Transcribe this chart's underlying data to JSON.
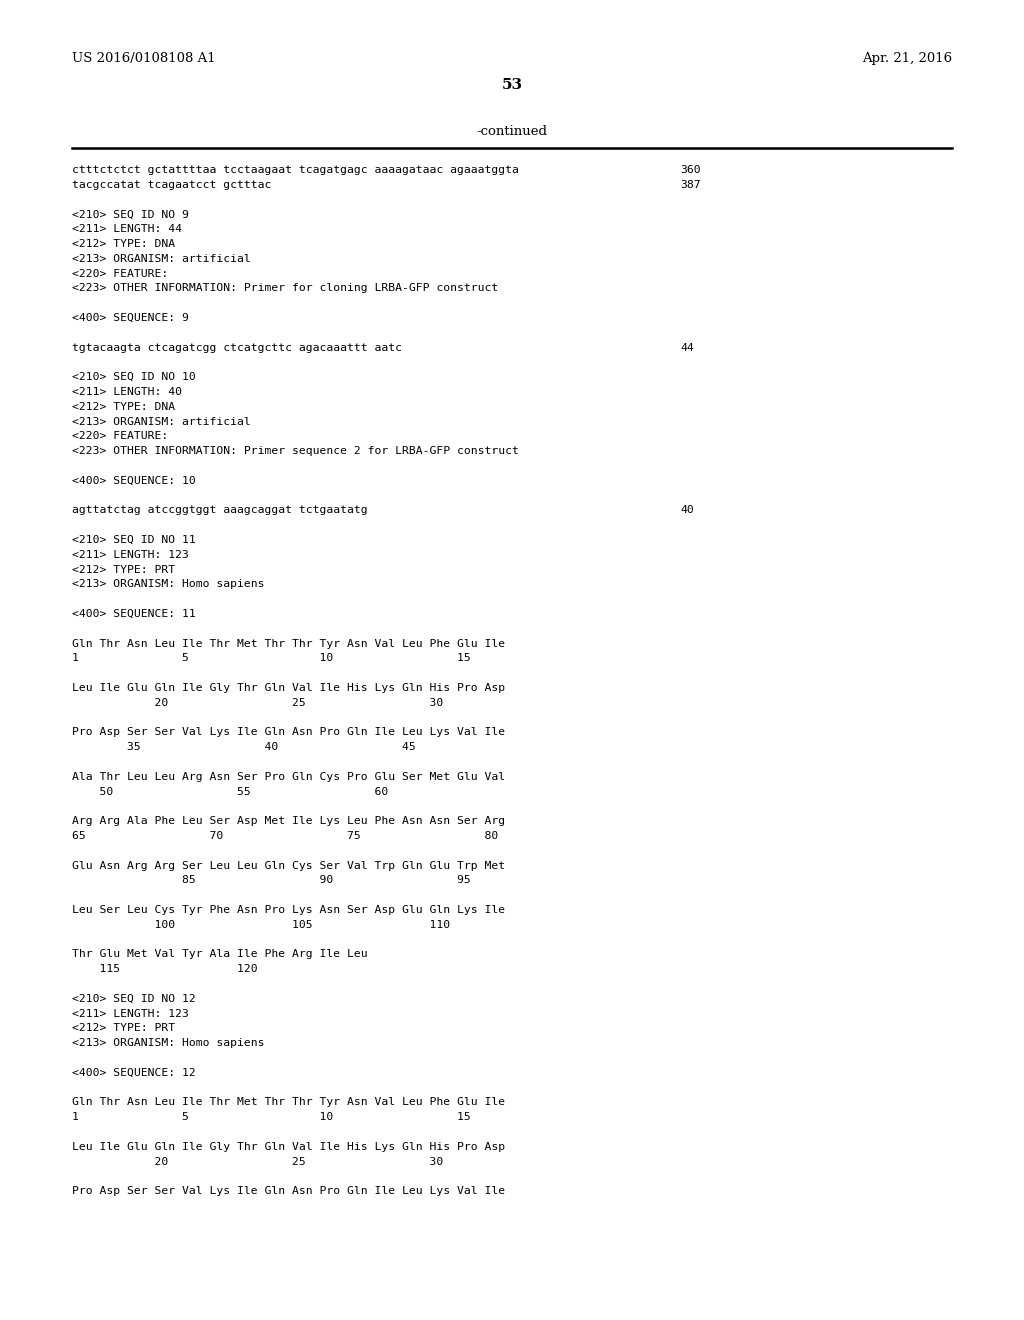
{
  "header_left": "US 2016/0108108 A1",
  "header_right": "Apr. 21, 2016",
  "page_number": "53",
  "continued_text": "-continued",
  "background_color": "#ffffff",
  "text_color": "#000000",
  "lines": [
    {
      "text": "ctttctctct gctattttaa tcctaagaat tcagatgagc aaaagataac agaaatggta",
      "number": "360",
      "blank_after": false
    },
    {
      "text": "tacgccatat tcagaatcct gctttac",
      "number": "387",
      "blank_after": true
    },
    {
      "text": "<210> SEQ ID NO 9",
      "number": "",
      "blank_after": false
    },
    {
      "text": "<211> LENGTH: 44",
      "number": "",
      "blank_after": false
    },
    {
      "text": "<212> TYPE: DNA",
      "number": "",
      "blank_after": false
    },
    {
      "text": "<213> ORGANISM: artificial",
      "number": "",
      "blank_after": false
    },
    {
      "text": "<220> FEATURE:",
      "number": "",
      "blank_after": false
    },
    {
      "text": "<223> OTHER INFORMATION: Primer for cloning LRBA-GFP construct",
      "number": "",
      "blank_after": true
    },
    {
      "text": "<400> SEQUENCE: 9",
      "number": "",
      "blank_after": true
    },
    {
      "text": "tgtacaagta ctcagatcgg ctcatgcttc agacaaattt aatc",
      "number": "44",
      "blank_after": true
    },
    {
      "text": "<210> SEQ ID NO 10",
      "number": "",
      "blank_after": false
    },
    {
      "text": "<211> LENGTH: 40",
      "number": "",
      "blank_after": false
    },
    {
      "text": "<212> TYPE: DNA",
      "number": "",
      "blank_after": false
    },
    {
      "text": "<213> ORGANISM: artificial",
      "number": "",
      "blank_after": false
    },
    {
      "text": "<220> FEATURE:",
      "number": "",
      "blank_after": false
    },
    {
      "text": "<223> OTHER INFORMATION: Primer sequence 2 for LRBA-GFP construct",
      "number": "",
      "blank_after": true
    },
    {
      "text": "<400> SEQUENCE: 10",
      "number": "",
      "blank_after": true
    },
    {
      "text": "agttatctag atccggtggt aaagcaggat tctgaatatg",
      "number": "40",
      "blank_after": true
    },
    {
      "text": "<210> SEQ ID NO 11",
      "number": "",
      "blank_after": false
    },
    {
      "text": "<211> LENGTH: 123",
      "number": "",
      "blank_after": false
    },
    {
      "text": "<212> TYPE: PRT",
      "number": "",
      "blank_after": false
    },
    {
      "text": "<213> ORGANISM: Homo sapiens",
      "number": "",
      "blank_after": true
    },
    {
      "text": "<400> SEQUENCE: 11",
      "number": "",
      "blank_after": true
    },
    {
      "text": "Gln Thr Asn Leu Ile Thr Met Thr Thr Tyr Asn Val Leu Phe Glu Ile",
      "number": "",
      "blank_after": false
    },
    {
      "text": "1               5                   10                  15",
      "number": "",
      "blank_after": true
    },
    {
      "text": "Leu Ile Glu Gln Ile Gly Thr Gln Val Ile His Lys Gln His Pro Asp",
      "number": "",
      "blank_after": false
    },
    {
      "text": "            20                  25                  30",
      "number": "",
      "blank_after": true
    },
    {
      "text": "Pro Asp Ser Ser Val Lys Ile Gln Asn Pro Gln Ile Leu Lys Val Ile",
      "number": "",
      "blank_after": false
    },
    {
      "text": "        35                  40                  45",
      "number": "",
      "blank_after": true
    },
    {
      "text": "Ala Thr Leu Leu Arg Asn Ser Pro Gln Cys Pro Glu Ser Met Glu Val",
      "number": "",
      "blank_after": false
    },
    {
      "text": "    50                  55                  60",
      "number": "",
      "blank_after": true
    },
    {
      "text": "Arg Arg Ala Phe Leu Ser Asp Met Ile Lys Leu Phe Asn Asn Ser Arg",
      "number": "",
      "blank_after": false
    },
    {
      "text": "65                  70                  75                  80",
      "number": "",
      "blank_after": true
    },
    {
      "text": "Glu Asn Arg Arg Ser Leu Leu Gln Cys Ser Val Trp Gln Glu Trp Met",
      "number": "",
      "blank_after": false
    },
    {
      "text": "                85                  90                  95",
      "number": "",
      "blank_after": true
    },
    {
      "text": "Leu Ser Leu Cys Tyr Phe Asn Pro Lys Asn Ser Asp Glu Gln Lys Ile",
      "number": "",
      "blank_after": false
    },
    {
      "text": "            100                 105                 110",
      "number": "",
      "blank_after": true
    },
    {
      "text": "Thr Glu Met Val Tyr Ala Ile Phe Arg Ile Leu",
      "number": "",
      "blank_after": false
    },
    {
      "text": "    115                 120",
      "number": "",
      "blank_after": true
    },
    {
      "text": "<210> SEQ ID NO 12",
      "number": "",
      "blank_after": false
    },
    {
      "text": "<211> LENGTH: 123",
      "number": "",
      "blank_after": false
    },
    {
      "text": "<212> TYPE: PRT",
      "number": "",
      "blank_after": false
    },
    {
      "text": "<213> ORGANISM: Homo sapiens",
      "number": "",
      "blank_after": true
    },
    {
      "text": "<400> SEQUENCE: 12",
      "number": "",
      "blank_after": true
    },
    {
      "text": "Gln Thr Asn Leu Ile Thr Met Thr Thr Tyr Asn Val Leu Phe Glu Ile",
      "number": "",
      "blank_after": false
    },
    {
      "text": "1               5                   10                  15",
      "number": "",
      "blank_after": true
    },
    {
      "text": "Leu Ile Glu Gln Ile Gly Thr Gln Val Ile His Lys Gln His Pro Asp",
      "number": "",
      "blank_after": false
    },
    {
      "text": "            20                  25                  30",
      "number": "",
      "blank_after": true
    },
    {
      "text": "Pro Asp Ser Ser Val Lys Ile Gln Asn Pro Gln Ile Leu Lys Val Ile",
      "number": "",
      "blank_after": false
    }
  ]
}
